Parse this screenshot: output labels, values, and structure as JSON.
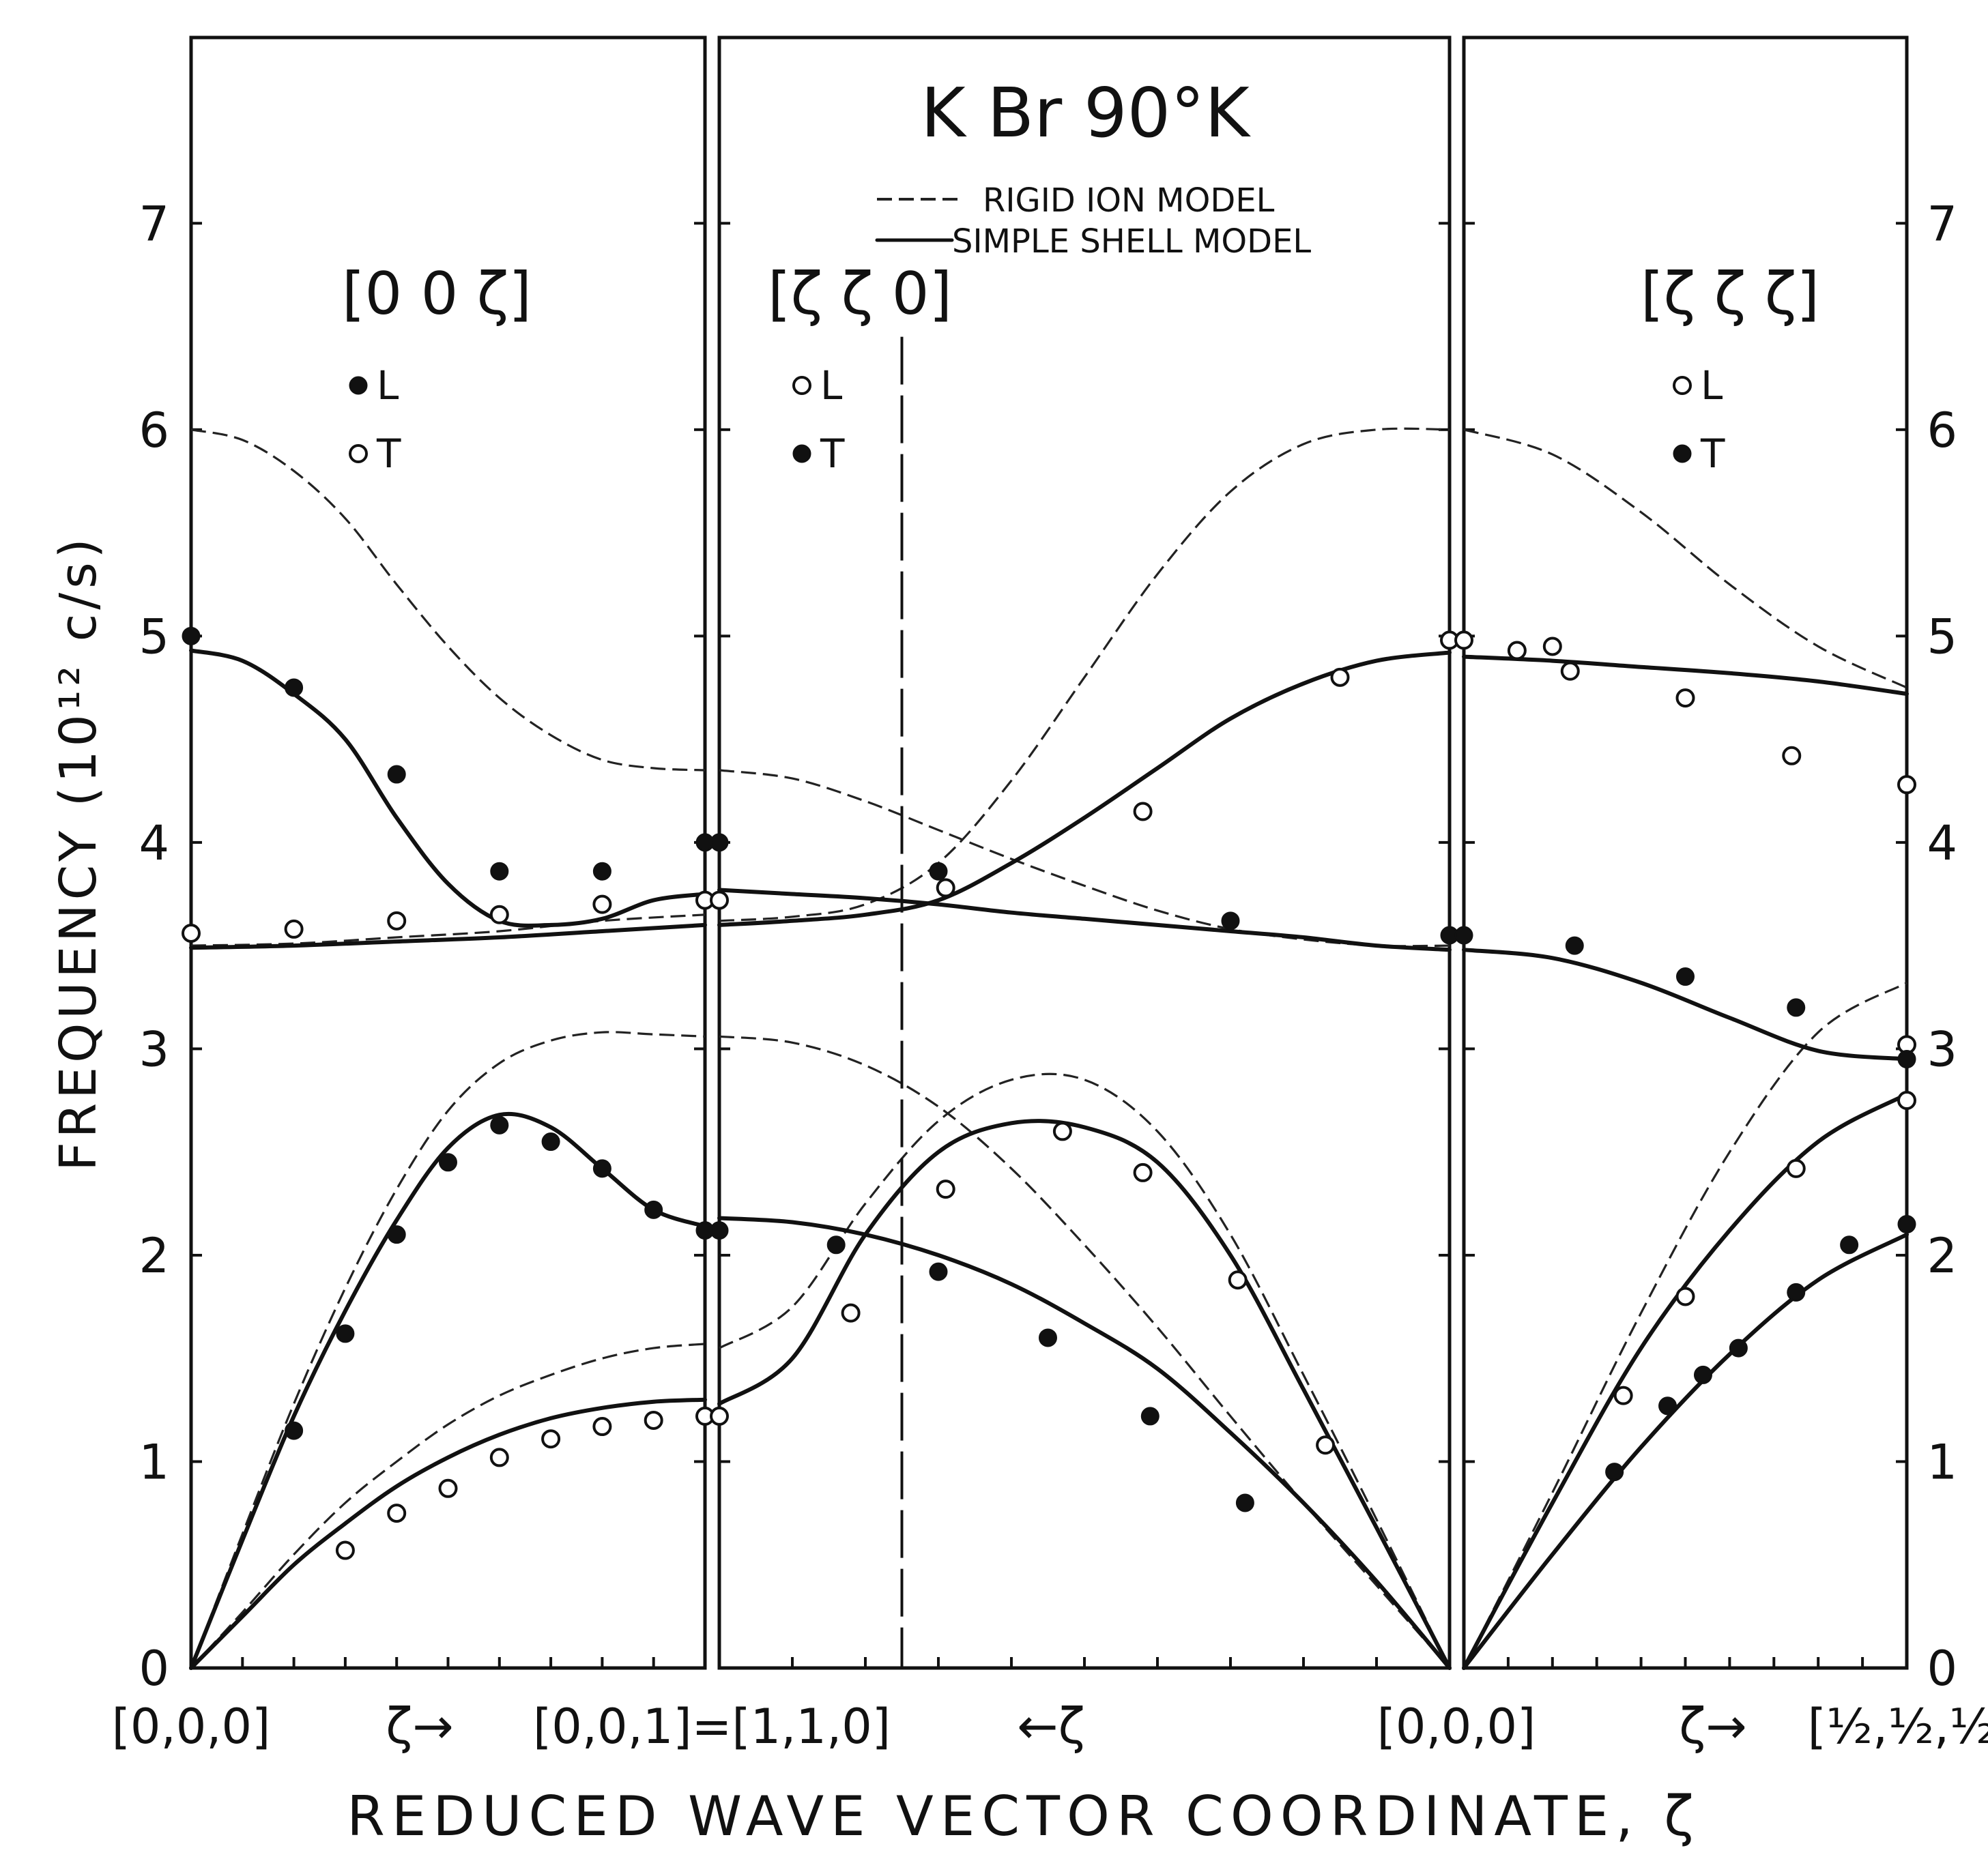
{
  "chart_data": {
    "type": "line",
    "title": "K Br  90°K",
    "xlabel": "REDUCED WAVE VECTOR COORDINATE,  ζ",
    "ylabel": "FREQUENCY  (10¹² c/s)",
    "ylim": [
      0,
      7.9
    ],
    "yticks": [
      0,
      1,
      2,
      3,
      4,
      5,
      6,
      7
    ],
    "legend": {
      "position": "top-center",
      "entries": [
        {
          "style": "dashed",
          "label": "RIGID  ION  MODEL"
        },
        {
          "style": "solid",
          "label": "SIMPLE  SHELL  MODEL"
        }
      ]
    },
    "x_tick_labels": [
      "[0,0,0]",
      "[0,0,1]=[1,1,0]",
      "[0,0,0]",
      "[½,½,½]"
    ],
    "x_arrow_labels": [
      "ζ→",
      "←ζ",
      "ζ→"
    ],
    "panels": [
      {
        "direction": "[0 0 ζ]",
        "legend": [
          {
            "marker": "filled",
            "label": "L"
          },
          {
            "marker": "open",
            "label": "T"
          }
        ],
        "x_range": [
          0,
          1
        ],
        "experimental": {
          "filled": [
            [
              0,
              5.0
            ],
            [
              0.2,
              1.15
            ],
            [
              0.3,
              1.62
            ],
            [
              0.4,
              2.1
            ],
            [
              0.5,
              2.45
            ],
            [
              0.6,
              2.63
            ],
            [
              0.7,
              2.55
            ],
            [
              0.8,
              2.42
            ],
            [
              0.9,
              2.22
            ],
            [
              1.0,
              2.12
            ],
            [
              0.2,
              4.75
            ],
            [
              0.4,
              4.33
            ],
            [
              0.6,
              3.86
            ],
            [
              0.8,
              3.86
            ],
            [
              1.0,
              4.0
            ]
          ],
          "open": [
            [
              0,
              3.56
            ],
            [
              0.2,
              3.58
            ],
            [
              0.4,
              3.62
            ],
            [
              0.6,
              3.65
            ],
            [
              0.8,
              3.7
            ],
            [
              1.0,
              3.72
            ],
            [
              0.3,
              0.57
            ],
            [
              0.4,
              0.75
            ],
            [
              0.5,
              0.87
            ],
            [
              0.6,
              1.02
            ],
            [
              0.7,
              1.11
            ],
            [
              0.8,
              1.17
            ],
            [
              0.9,
              1.2
            ],
            [
              1.0,
              1.22
            ]
          ]
        },
        "shell_model": [
          {
            "x": [
              0,
              0.1,
              0.2,
              0.3,
              0.4,
              0.5,
              0.6,
              0.7,
              0.8,
              0.9,
              1.0
            ],
            "y": [
              4.93,
              4.88,
              4.72,
              4.5,
              4.12,
              3.8,
              3.62,
              3.6,
              3.63,
              3.72,
              3.75
            ]
          },
          {
            "x": [
              0,
              0.2,
              0.4,
              0.6,
              0.8,
              1.0
            ],
            "y": [
              3.49,
              3.5,
              3.52,
              3.54,
              3.57,
              3.6
            ]
          },
          {
            "x": [
              0,
              0.1,
              0.2,
              0.3,
              0.4,
              0.5,
              0.6,
              0.7,
              0.8,
              0.9,
              1.0
            ],
            "y": [
              0,
              0.62,
              1.22,
              1.73,
              2.17,
              2.52,
              2.68,
              2.62,
              2.42,
              2.22,
              2.14
            ]
          },
          {
            "x": [
              0,
              0.1,
              0.2,
              0.3,
              0.4,
              0.5,
              0.6,
              0.7,
              0.8,
              0.9,
              1.0
            ],
            "y": [
              0,
              0.25,
              0.5,
              0.7,
              0.88,
              1.02,
              1.13,
              1.21,
              1.26,
              1.29,
              1.3
            ]
          }
        ],
        "rigid_model": [
          {
            "x": [
              0,
              0.1,
              0.2,
              0.3,
              0.4,
              0.5,
              0.6,
              0.7,
              0.8,
              0.9,
              1.0
            ],
            "y": [
              6.0,
              5.95,
              5.8,
              5.57,
              5.25,
              4.95,
              4.7,
              4.52,
              4.4,
              4.36,
              4.35
            ]
          },
          {
            "x": [
              0,
              0.2,
              0.4,
              0.6,
              0.8,
              1.0
            ],
            "y": [
              3.5,
              3.51,
              3.54,
              3.57,
              3.62,
              3.65
            ]
          },
          {
            "x": [
              0,
              0.1,
              0.2,
              0.3,
              0.4,
              0.5,
              0.6,
              0.7,
              0.8,
              0.9,
              1.0
            ],
            "y": [
              0,
              0.65,
              1.28,
              1.84,
              2.32,
              2.7,
              2.93,
              3.04,
              3.08,
              3.07,
              3.06
            ]
          },
          {
            "x": [
              0,
              0.1,
              0.2,
              0.3,
              0.4,
              0.5,
              0.6,
              0.7,
              0.8,
              0.9,
              1.0
            ],
            "y": [
              0,
              0.27,
              0.55,
              0.8,
              1.0,
              1.18,
              1.32,
              1.42,
              1.5,
              1.55,
              1.57
            ]
          }
        ]
      },
      {
        "direction": "[ζ ζ 0]",
        "legend": [
          {
            "marker": "open",
            "label": "L"
          },
          {
            "marker": "filled",
            "label": "T"
          }
        ],
        "x_range": [
          1,
          0
        ],
        "zone_boundary_marker": 0.75,
        "experimental": {
          "filled": [
            [
              1.0,
              4.0
            ],
            [
              1.0,
              2.12
            ],
            [
              0.84,
              2.05
            ],
            [
              0.7,
              1.92
            ],
            [
              0.55,
              1.6
            ],
            [
              0.41,
              1.22
            ],
            [
              0.28,
              0.8
            ],
            [
              0.7,
              3.86
            ],
            [
              0.3,
              3.62
            ],
            [
              0.0,
              3.55
            ]
          ],
          "open": [
            [
              1.0,
              3.72
            ],
            [
              1.0,
              1.22
            ],
            [
              0.82,
              1.72
            ],
            [
              0.69,
              2.32
            ],
            [
              0.53,
              2.6
            ],
            [
              0.42,
              2.4
            ],
            [
              0.29,
              1.88
            ],
            [
              0.17,
              1.08
            ],
            [
              0.69,
              3.78
            ],
            [
              0.42,
              4.15
            ],
            [
              0.15,
              4.8
            ],
            [
              0.0,
              4.98
            ]
          ]
        },
        "shell_model": [
          {
            "x": [
              1.0,
              0.9,
              0.8,
              0.7,
              0.6,
              0.5,
              0.4,
              0.3,
              0.2,
              0.1,
              0.0
            ],
            "y": [
              3.6,
              3.62,
              3.65,
              3.72,
              3.9,
              4.12,
              4.36,
              4.6,
              4.77,
              4.88,
              4.92
            ]
          },
          {
            "x": [
              1.0,
              0.9,
              0.8,
              0.7,
              0.6,
              0.5,
              0.4,
              0.3,
              0.2,
              0.1,
              0.0
            ],
            "y": [
              3.77,
              3.75,
              3.73,
              3.7,
              3.66,
              3.63,
              3.6,
              3.57,
              3.54,
              3.5,
              3.48
            ]
          },
          {
            "x": [
              1.0,
              0.9,
              0.8,
              0.7,
              0.6,
              0.5,
              0.4,
              0.3,
              0.2,
              0.1,
              0.0
            ],
            "y": [
              2.18,
              2.16,
              2.1,
              2.0,
              1.86,
              1.67,
              1.45,
              1.14,
              0.8,
              0.42,
              0
            ]
          },
          {
            "x": [
              1.0,
              0.9,
              0.8,
              0.7,
              0.6,
              0.5,
              0.4,
              0.3,
              0.2,
              0.1,
              0.0
            ],
            "y": [
              1.28,
              1.5,
              2.1,
              2.5,
              2.64,
              2.62,
              2.45,
              2.0,
              1.35,
              0.68,
              0
            ]
          }
        ],
        "rigid_model": [
          {
            "x": [
              1.0,
              0.9,
              0.8,
              0.7,
              0.6,
              0.5,
              0.4,
              0.3,
              0.2,
              0.1,
              0.0
            ],
            "y": [
              4.35,
              4.31,
              4.2,
              4.06,
              3.92,
              3.79,
              3.67,
              3.58,
              3.53,
              3.5,
              3.5
            ]
          },
          {
            "x": [
              1.0,
              0.9,
              0.8,
              0.7,
              0.6,
              0.5,
              0.4,
              0.3,
              0.2,
              0.1,
              0.0
            ],
            "y": [
              3.62,
              3.64,
              3.7,
              3.9,
              4.3,
              4.8,
              5.3,
              5.7,
              5.93,
              6.0,
              6.0
            ]
          },
          {
            "x": [
              1.0,
              0.9,
              0.8,
              0.7,
              0.6,
              0.5,
              0.4,
              0.3,
              0.2,
              0.1,
              0.0
            ],
            "y": [
              3.06,
              3.03,
              2.92,
              2.72,
              2.42,
              2.05,
              1.65,
              1.22,
              0.8,
              0.4,
              0
            ]
          },
          {
            "x": [
              1.0,
              0.9,
              0.8,
              0.7,
              0.6,
              0.5,
              0.4,
              0.3,
              0.2,
              0.1,
              0.0
            ],
            "y": [
              1.55,
              1.75,
              2.25,
              2.65,
              2.85,
              2.85,
              2.6,
              2.1,
              1.42,
              0.72,
              0
            ]
          }
        ]
      },
      {
        "direction": "[ζ ζ ζ]",
        "legend": [
          {
            "marker": "open",
            "label": "L"
          },
          {
            "marker": "filled",
            "label": "T"
          }
        ],
        "x_range": [
          0,
          0.5
        ],
        "experimental": {
          "filled": [
            [
              0.0,
              3.55
            ],
            [
              0.125,
              3.5
            ],
            [
              0.25,
              3.35
            ],
            [
              0.375,
              3.2
            ],
            [
              0.5,
              2.95
            ],
            [
              0.17,
              0.95
            ],
            [
              0.23,
              1.27
            ],
            [
              0.27,
              1.42
            ],
            [
              0.31,
              1.55
            ],
            [
              0.375,
              1.82
            ],
            [
              0.435,
              2.05
            ],
            [
              0.5,
              2.15
            ]
          ],
          "open": [
            [
              0.0,
              4.98
            ],
            [
              0.06,
              4.93
            ],
            [
              0.1,
              4.95
            ],
            [
              0.12,
              4.83
            ],
            [
              0.25,
              4.7
            ],
            [
              0.37,
              4.42
            ],
            [
              0.5,
              4.28
            ],
            [
              0.18,
              1.32
            ],
            [
              0.25,
              1.8
            ],
            [
              0.375,
              2.42
            ],
            [
              0.5,
              2.75
            ],
            [
              0.5,
              3.02
            ]
          ]
        },
        "shell_model": [
          {
            "x": [
              0,
              0.1,
              0.2,
              0.3,
              0.4,
              0.5
            ],
            "y": [
              4.9,
              4.88,
              4.85,
              4.82,
              4.78,
              4.72
            ]
          },
          {
            "x": [
              0,
              0.1,
              0.2,
              0.3,
              0.4,
              0.5
            ],
            "y": [
              3.48,
              3.44,
              3.32,
              3.15,
              2.99,
              2.95
            ]
          },
          {
            "x": [
              0,
              0.1,
              0.2,
              0.3,
              0.4,
              0.5
            ],
            "y": [
              0,
              0.8,
              1.55,
              2.12,
              2.55,
              2.78
            ]
          },
          {
            "x": [
              0,
              0.1,
              0.2,
              0.3,
              0.4,
              0.5
            ],
            "y": [
              0,
              0.55,
              1.07,
              1.52,
              1.88,
              2.1
            ]
          }
        ],
        "rigid_model": [
          {
            "x": [
              0,
              0.1,
              0.2,
              0.3,
              0.4,
              0.5
            ],
            "y": [
              6.0,
              5.88,
              5.6,
              5.25,
              4.95,
              4.75
            ]
          },
          {
            "x": [
              0,
              0.1,
              0.2,
              0.3,
              0.4,
              0.5
            ],
            "y": [
              0,
              0.85,
              1.72,
              2.5,
              3.08,
              3.32
            ]
          }
        ]
      }
    ]
  }
}
